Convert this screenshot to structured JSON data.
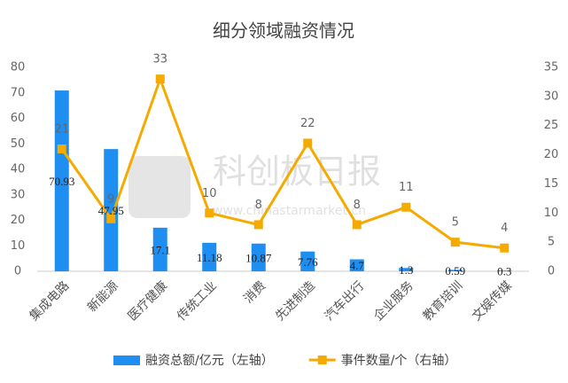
{
  "chart_data": {
    "type": "bar-line",
    "title": "细分领域融资情况",
    "categories": [
      "集成电路",
      "新能源",
      "医疗健康",
      "传统工业",
      "消费",
      "先进制造",
      "汽车出行",
      "企业服务",
      "教育培训",
      "文娱传媒"
    ],
    "series": [
      {
        "name": "融资总额/亿元（左轴）",
        "type": "bar",
        "color": "#1f8ef1",
        "values": [
          70.93,
          47.95,
          17.1,
          11.18,
          10.87,
          7.76,
          4.7,
          1.3,
          0.59,
          0.3
        ]
      },
      {
        "name": "事件数量/个（右轴）",
        "type": "line",
        "axis": "y2",
        "color": "#f5aa00",
        "values": [
          21,
          9,
          33,
          10,
          8,
          22,
          8,
          11,
          5,
          4
        ]
      }
    ],
    "ylim": [
      0,
      80
    ],
    "yticks": [
      0,
      10,
      20,
      30,
      40,
      50,
      60,
      70,
      80
    ],
    "y2lim": [
      0,
      35
    ],
    "y2ticks": [
      0,
      5,
      10,
      15,
      20,
      25,
      30,
      35
    ],
    "legend": "bottom",
    "watermark": {
      "text": "科创板日报",
      "url": "www.chinastarmarket.cn"
    }
  }
}
